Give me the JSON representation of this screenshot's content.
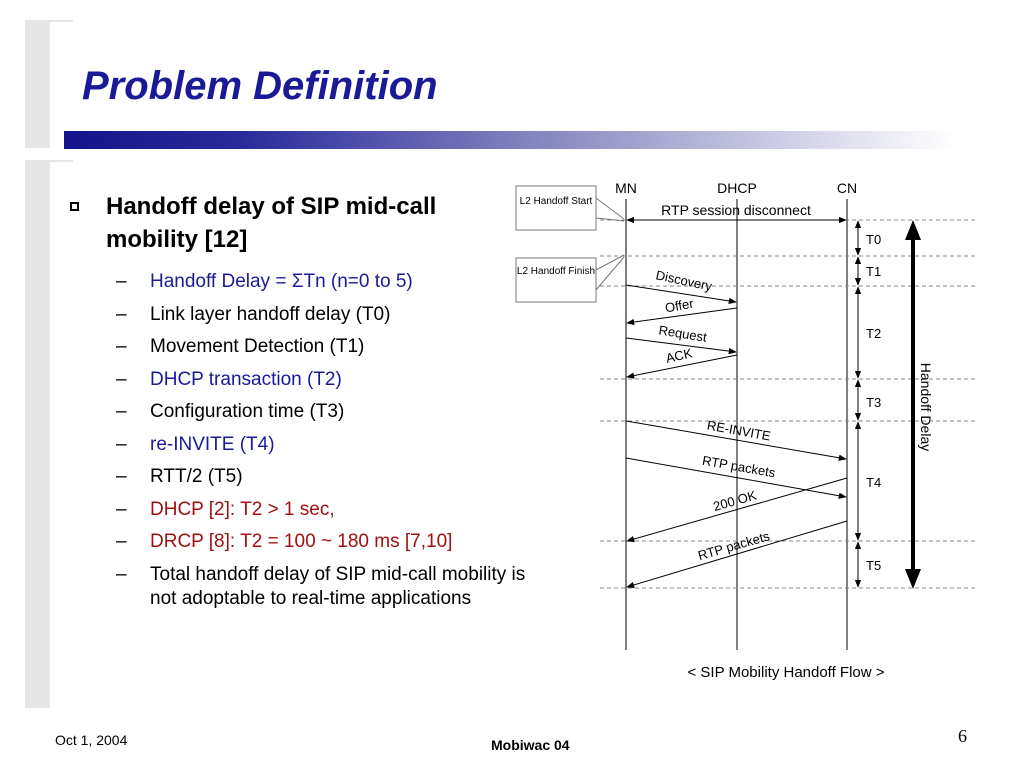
{
  "title": "Problem Definition",
  "colors": {
    "title": "#1a1a99",
    "blue_item": "#1a1a99",
    "red_item": "#a01010",
    "black_item": "#000000"
  },
  "main_bullet": "Handoff delay of SIP mid-call mobility [12]",
  "sub_bullets": [
    {
      "text": "Handoff Delay = ΣTn (n=0 to 5)",
      "color": "blue"
    },
    {
      "text": "Link layer handoff delay (T0)",
      "color": "black"
    },
    {
      "text": "Movement Detection (T1)",
      "color": "black"
    },
    {
      "text": "DHCP transaction (T2)",
      "color": "blue"
    },
    {
      "text": "Configuration time (T3)",
      "color": "black"
    },
    {
      "text": "re-INVITE (T4)",
      "color": "blue"
    },
    {
      "text": "RTT/2 (T5)",
      "color": "black"
    },
    {
      "text": "DHCP [2]: T2 > 1 sec,",
      "color": "red"
    },
    {
      "text": "DRCP [8]: T2 = 100 ~ 180 ms [7,10]",
      "color": "red"
    },
    {
      "text": "Total handoff delay of SIP mid-call mobility is not adoptable to real-time applications",
      "color": "black"
    }
  ],
  "diagram": {
    "entities": [
      "MN",
      "DHCP",
      "CN"
    ],
    "callouts": [
      "L2 Handoff Start",
      "L2 Handoff Finish"
    ],
    "top_message": "RTP session disconnect",
    "messages": [
      "Discovery",
      "Offer",
      "Request",
      "ACK",
      "RE-INVITE",
      "RTP packets",
      "200 OK",
      "RTP packets"
    ],
    "intervals": [
      "T0",
      "T1",
      "T2",
      "T3",
      "T4",
      "T5"
    ],
    "delay_label": "Handoff Delay",
    "caption": "< SIP Mobility Handoff Flow >"
  },
  "footer": {
    "date": "Oct 1, 2004",
    "center": "Mobiwac 04",
    "page": "6"
  }
}
